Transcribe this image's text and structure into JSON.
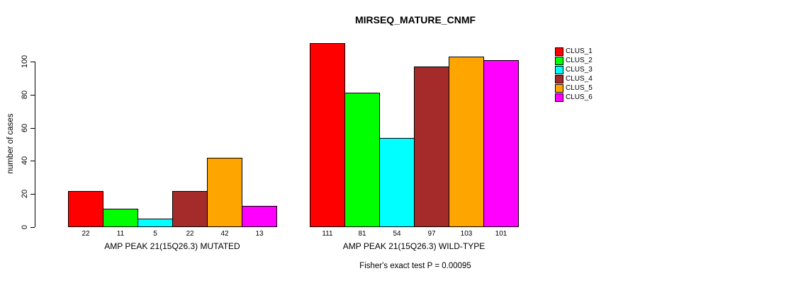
{
  "page": {
    "background": "#ffffff",
    "text_color": "#000000"
  },
  "chart_data": {
    "type": "bar",
    "title": "MIRSEQ_MATURE_CNMF",
    "xlabel": "",
    "ylabel": "number of cases",
    "ylim": [
      0,
      100
    ],
    "yticks": [
      0,
      20,
      40,
      60,
      80,
      100
    ],
    "grid": false,
    "legend_position": "right",
    "bar_value_labels_shown": true,
    "categories": [
      "AMP PEAK 21(15Q26.3) MUTATED",
      "AMP PEAK 21(15Q26.3) WILD-TYPE"
    ],
    "series": [
      {
        "name": "CLUS_1",
        "color": "#FF0000",
        "values": [
          22,
          111
        ]
      },
      {
        "name": "CLUS_2",
        "color": "#00FF00",
        "values": [
          11,
          81
        ]
      },
      {
        "name": "CLUS_3",
        "color": "#00FFFF",
        "values": [
          5,
          54
        ]
      },
      {
        "name": "CLUS_4",
        "color": "#A52A2A",
        "values": [
          22,
          97
        ]
      },
      {
        "name": "CLUS_5",
        "color": "#FFA500",
        "values": [
          42,
          103
        ]
      },
      {
        "name": "CLUS_6",
        "color": "#FF00FF",
        "values": [
          13,
          101
        ]
      }
    ],
    "annotation": "Fisher's exact test P = 0.00095"
  }
}
